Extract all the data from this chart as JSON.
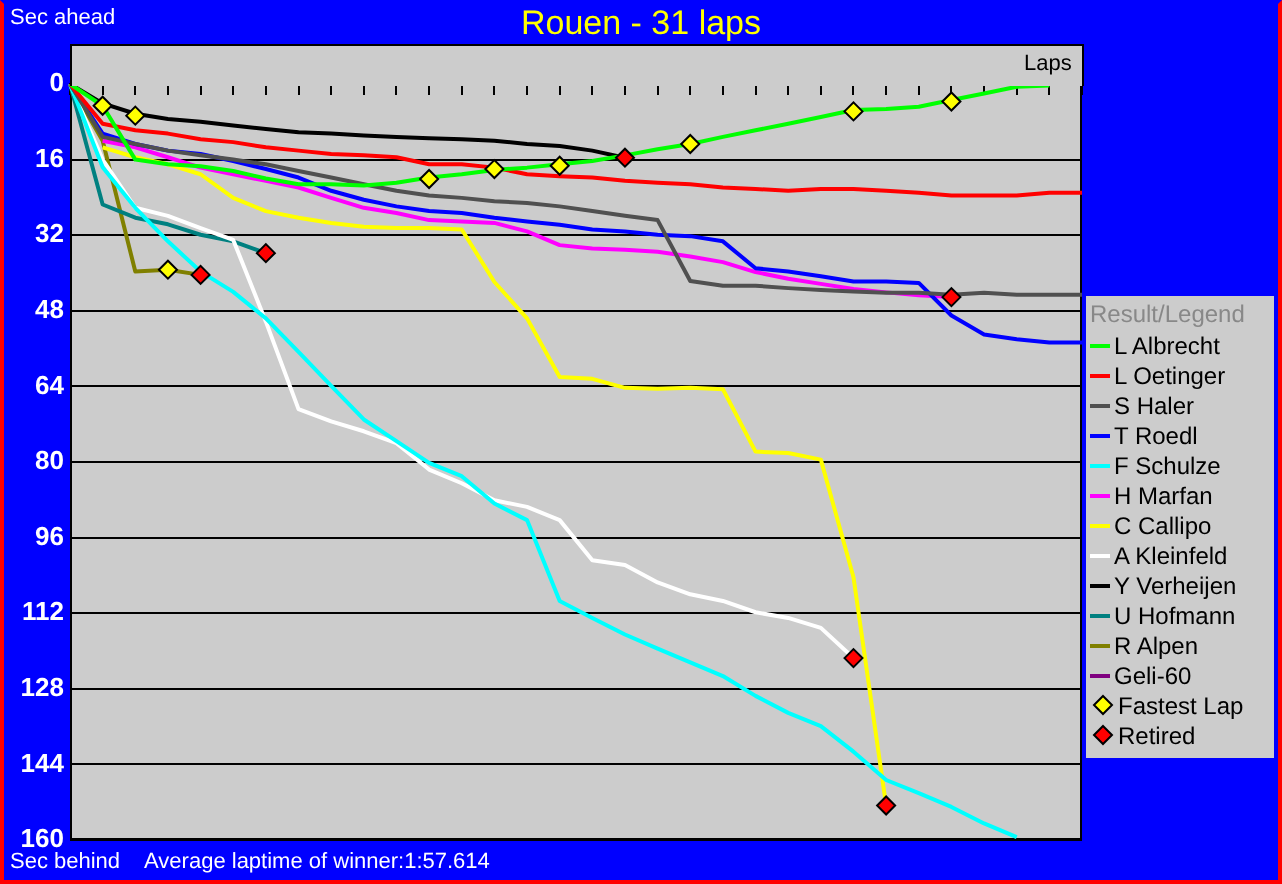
{
  "chart_data": {
    "type": "line",
    "title": "Rouen - 31 laps",
    "xlabel": "Laps",
    "ylabel": "Sec ahead",
    "legend_title": "Result/Legend",
    "annotations": [
      "Sec behind",
      "Average laptime of winner:1:57.614"
    ],
    "categories": [
      null,
      null,
      null,
      null,
      null,
      null,
      null,
      null,
      null,
      null,
      null,
      null,
      null,
      null,
      null,
      null,
      null,
      null,
      null,
      null,
      null,
      null,
      null,
      null,
      null,
      null,
      null,
      null,
      null,
      null,
      null,
      null
    ],
    "ylim": [
      160,
      0
    ],
    "yticks": [
      0,
      16,
      32,
      48,
      64,
      80,
      96,
      112,
      128,
      144,
      160
    ],
    "grid": "y",
    "legend": "right",
    "tick_labels": "y",
    "marker": "none",
    "line_style": "solid",
    "series": [
      {
        "name": "L Albrecht",
        "color": "#00ff00",
        "values": [
          0,
          4.6,
          16,
          17,
          17.4,
          18.4,
          20,
          21.2,
          21.2,
          21.5,
          20.9,
          19.8,
          19.1,
          18.2,
          17.7,
          17,
          16.3,
          15.1,
          13.8,
          12.7,
          11.2,
          9.8,
          8.4,
          7,
          5.5,
          5.3,
          4.8,
          3.4,
          2,
          0.6,
          0.3,
          null
        ]
      },
      {
        "name": "L Oetinger",
        "color": "#ff0000",
        "values": [
          0,
          8.4,
          9.8,
          10.5,
          11.7,
          12.3,
          13.4,
          14.1,
          14.8,
          15.1,
          15.5,
          17,
          17,
          17.7,
          19.1,
          19.5,
          19.8,
          20.5,
          20.9,
          21.2,
          21.9,
          22.2,
          22.6,
          22.2,
          22.2,
          22.6,
          23,
          23.6,
          23.6,
          23.6,
          23,
          23
        ]
      },
      {
        "name": "S Haler",
        "color": "#505050",
        "values": [
          0,
          11.2,
          12.7,
          14.1,
          15.1,
          16,
          17,
          18.4,
          19.8,
          21.2,
          22.6,
          23.6,
          24.1,
          24.8,
          25.2,
          25.9,
          26.9,
          27.9,
          28.8,
          41.7,
          42.7,
          42.7,
          43.2,
          43.6,
          43.9,
          44.2,
          44.2,
          44.6,
          44.2,
          44.6,
          44.6,
          44.6
        ]
      },
      {
        "name": "T Roedl",
        "color": "#0000ff",
        "values": [
          0,
          10.5,
          12.7,
          14.1,
          14.8,
          16.3,
          18,
          19.8,
          22.6,
          24.5,
          25.9,
          26.9,
          27.3,
          28.3,
          29.1,
          29.8,
          30.8,
          31.2,
          31.9,
          32.2,
          33.3,
          39,
          39.7,
          40.7,
          41.8,
          41.8,
          42.1,
          49,
          53,
          54,
          54.7,
          54.7
        ]
      },
      {
        "name": "F Schulze",
        "color": "#00ffff",
        "values": [
          0,
          17.6,
          26.2,
          33.3,
          39.7,
          44,
          49.6,
          56.7,
          63.9,
          71,
          75.6,
          80.2,
          83,
          88.8,
          92.3,
          109.4,
          113,
          116.5,
          119.5,
          122.4,
          125.3,
          129.5,
          133.1,
          135.9,
          141.3,
          147.3,
          150.1,
          153,
          156.5,
          159.4,
          null,
          null
        ]
      },
      {
        "name": "H Marfan",
        "color": "#ff00ff",
        "values": [
          null,
          12,
          13.4,
          15.5,
          17.7,
          19.1,
          20.5,
          21.9,
          24.1,
          26.2,
          27.3,
          28.8,
          29.1,
          29.4,
          31.2,
          34.1,
          34.8,
          35.1,
          35.5,
          36.5,
          37.7,
          39.8,
          41.2,
          42.3,
          43.4,
          44.1,
          44.7,
          45.1,
          null,
          null,
          null,
          null
        ]
      },
      {
        "name": "C Callipo",
        "color": "#ffff00",
        "values": [
          null,
          13.4,
          15.5,
          17,
          19.1,
          24.1,
          26.9,
          28.3,
          29.4,
          30.2,
          30.5,
          30.5,
          30.8,
          41.9,
          49.6,
          62,
          62.4,
          64.3,
          64.5,
          64.3,
          64.6,
          77.8,
          78.1,
          79.5,
          104.4,
          152.7,
          null,
          null,
          null,
          null,
          null,
          null
        ]
      },
      {
        "name": "A Kleinfeld",
        "color": "#ffffff",
        "values": [
          0,
          16,
          26.2,
          27.9,
          30.5,
          33,
          50.3,
          68.8,
          71.4,
          73.5,
          76,
          81.6,
          84.5,
          88.1,
          89.5,
          92.3,
          100.8,
          101.8,
          105.5,
          108,
          109.4,
          111.8,
          113,
          115.1,
          121.5,
          null,
          null,
          null,
          null,
          null,
          null,
          null
        ]
      },
      {
        "name": "Y Verheijen",
        "color": "#000000",
        "values": [
          0,
          4.1,
          6.3,
          7.4,
          8,
          8.8,
          9.5,
          10.2,
          10.5,
          10.9,
          11.2,
          11.5,
          11.7,
          12,
          12.7,
          13.1,
          14.1,
          15.6,
          null,
          null,
          null,
          null,
          null,
          null,
          null,
          null,
          null,
          null,
          null,
          null,
          null,
          null
        ]
      },
      {
        "name": "U Hofmann",
        "color": "#008080",
        "values": [
          0,
          25.5,
          28.3,
          29.7,
          31.9,
          33.3,
          35.8,
          null,
          null,
          null,
          null,
          null,
          null,
          null,
          null,
          null,
          null,
          null,
          null,
          null,
          null,
          null,
          null,
          null,
          null,
          null,
          null,
          null,
          null,
          null,
          null,
          null
        ]
      },
      {
        "name": "R Alpen",
        "color": "#808000",
        "values": [
          0,
          12,
          39.7,
          39.3,
          40.4,
          null,
          null,
          null,
          null,
          null,
          null,
          null,
          null,
          null,
          null,
          null,
          null,
          null,
          null,
          null,
          null,
          null,
          null,
          null,
          null,
          null,
          null,
          null,
          null,
          null,
          null,
          null
        ]
      },
      {
        "name": "Geli-60",
        "color": "#800080",
        "values": [
          null,
          null,
          null,
          null,
          null,
          null,
          null,
          null,
          null,
          null,
          null,
          null,
          null,
          null,
          null,
          null,
          null,
          null,
          null,
          null,
          null,
          null,
          null,
          null,
          null,
          null,
          null,
          null,
          null,
          null,
          null,
          null
        ]
      },
      {
        "name": "Fastest Lap",
        "type": "scatter",
        "marker": "diamond",
        "color": "#ffff00",
        "values": [
          null,
          4.6,
          6.7,
          39.3,
          null,
          null,
          null,
          null,
          null,
          null,
          null,
          20.1,
          null,
          18,
          null,
          17.3,
          null,
          null,
          null,
          12.7,
          null,
          null,
          null,
          null,
          5.8,
          null,
          null,
          3.7,
          null,
          null,
          null,
          null
        ]
      },
      {
        "name": "Retired",
        "type": "scatter",
        "marker": "diamond",
        "color": "#ff0000",
        "values": [
          null,
          null,
          null,
          null,
          40.4,
          null,
          35.8,
          null,
          null,
          null,
          null,
          null,
          null,
          null,
          null,
          null,
          null,
          15.6,
          null,
          null,
          null,
          null,
          null,
          null,
          121.5,
          152.7,
          null,
          45.1,
          null,
          null,
          null,
          null
        ]
      }
    ]
  }
}
